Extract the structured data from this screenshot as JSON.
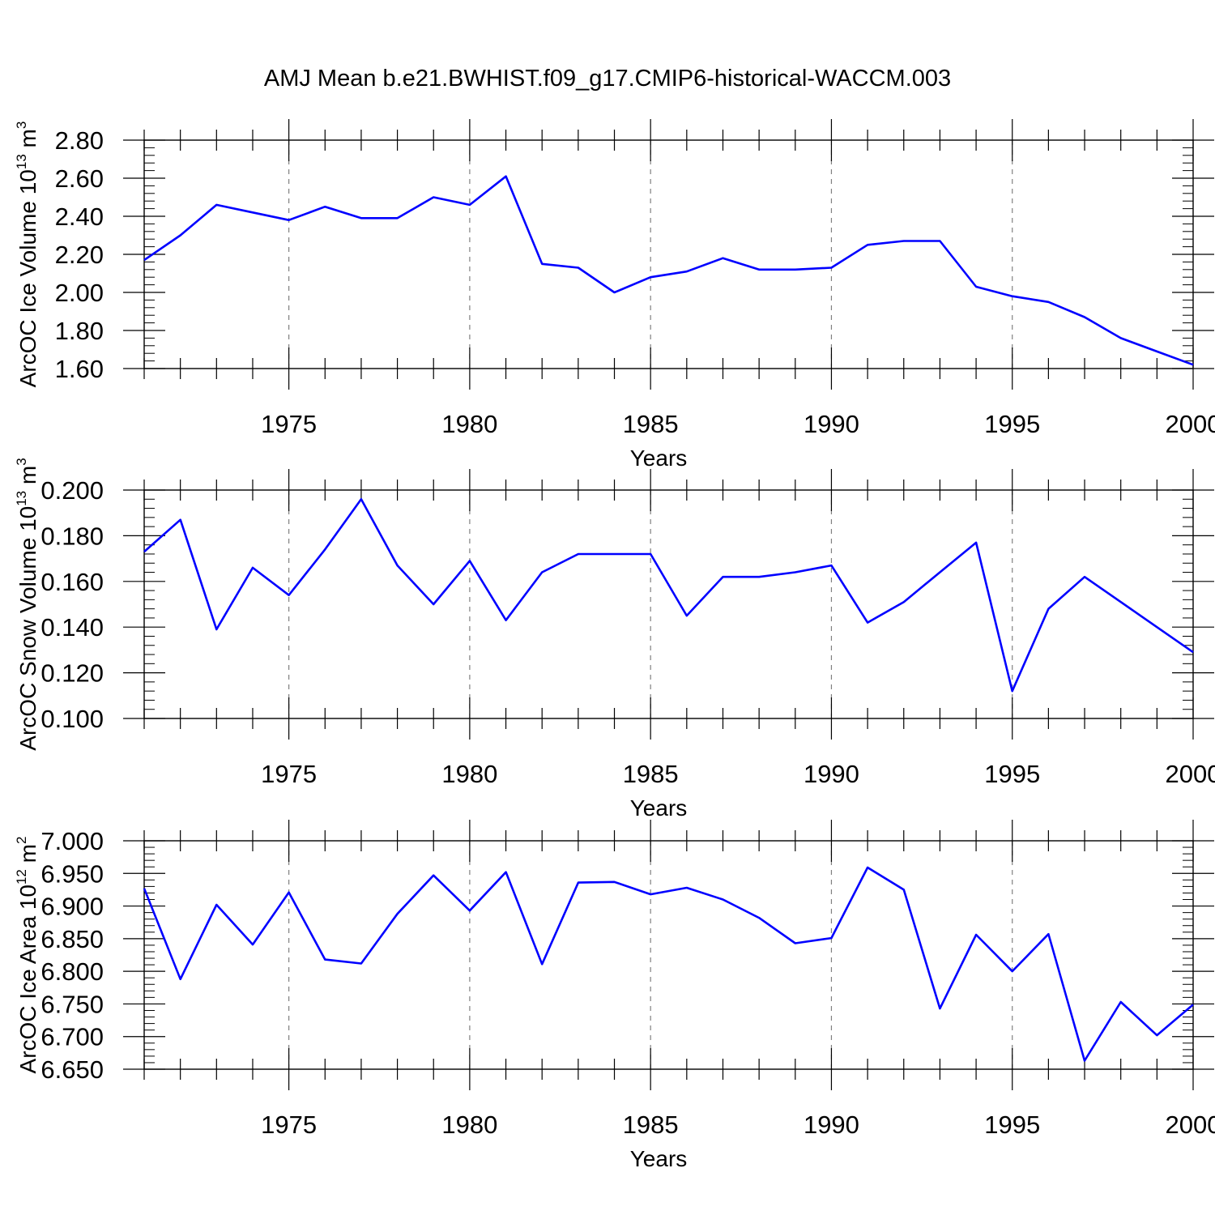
{
  "title": "AMJ Mean b.e21.BWHIST.f09_g17.CMIP6-historical-WACCM.003",
  "style": {
    "line_color": "#0000ff",
    "axis_color": "#000000",
    "grid_color": "#808080"
  },
  "chart_data": [
    {
      "type": "line",
      "ylabel_main": "ArcOC Ice Volume 10",
      "ylabel_exp": "13",
      "ylabel_unit": " m",
      "ylabel_unit_exp": "3",
      "xlabel": "Years",
      "xlim": [
        1971,
        2000
      ],
      "ylim": [
        1.6,
        2.8
      ],
      "yticks": [
        1.6,
        1.8,
        2.0,
        2.2,
        2.4,
        2.6,
        2.8
      ],
      "ytick_labels": [
        "1.60",
        "1.80",
        "2.00",
        "2.20",
        "2.40",
        "2.60",
        "2.80"
      ],
      "xticks": [
        1975,
        1980,
        1985,
        1990,
        1995,
        2000
      ],
      "xtick_labels": [
        "1975",
        "1980",
        "1985",
        "1990",
        "1995",
        "2000"
      ],
      "x": [
        1971,
        1972,
        1973,
        1974,
        1975,
        1976,
        1977,
        1978,
        1979,
        1980,
        1981,
        1982,
        1983,
        1984,
        1985,
        1986,
        1987,
        1988,
        1989,
        1990,
        1991,
        1992,
        1993,
        1994,
        1995,
        1996,
        1997,
        1998,
        1999,
        2000
      ],
      "values": [
        2.17,
        2.3,
        2.46,
        2.42,
        2.38,
        2.45,
        2.39,
        2.39,
        2.5,
        2.46,
        2.61,
        2.15,
        2.13,
        2.0,
        2.08,
        2.11,
        2.18,
        2.12,
        2.12,
        2.13,
        2.25,
        2.27,
        2.27,
        2.03,
        1.98,
        1.95,
        1.87,
        1.76,
        1.69,
        1.62
      ]
    },
    {
      "type": "line",
      "ylabel_main": "ArcOC Snow Volume 10",
      "ylabel_exp": "13",
      "ylabel_unit": " m",
      "ylabel_unit_exp": "3",
      "xlabel": "Years",
      "xlim": [
        1971,
        2000
      ],
      "ylim": [
        0.1,
        0.2
      ],
      "yticks": [
        0.1,
        0.12,
        0.14,
        0.16,
        0.18,
        0.2
      ],
      "ytick_labels": [
        "0.100",
        "0.120",
        "0.140",
        "0.160",
        "0.180",
        "0.200"
      ],
      "xticks": [
        1975,
        1980,
        1985,
        1990,
        1995,
        2000
      ],
      "xtick_labels": [
        "1975",
        "1980",
        "1985",
        "1990",
        "1995",
        "2000"
      ],
      "x": [
        1971,
        1972,
        1973,
        1974,
        1975,
        1976,
        1977,
        1978,
        1979,
        1980,
        1981,
        1982,
        1983,
        1984,
        1985,
        1986,
        1987,
        1988,
        1989,
        1990,
        1991,
        1992,
        1993,
        1994,
        1995,
        1996,
        1997,
        1998,
        1999,
        2000
      ],
      "values": [
        0.173,
        0.187,
        0.139,
        0.166,
        0.154,
        0.174,
        0.196,
        0.167,
        0.15,
        0.169,
        0.143,
        0.164,
        0.172,
        0.172,
        0.172,
        0.145,
        0.162,
        0.162,
        0.164,
        0.167,
        0.142,
        0.151,
        0.164,
        0.177,
        0.112,
        0.148,
        0.162,
        0.151,
        0.14,
        0.129
      ]
    },
    {
      "type": "line",
      "ylabel_main": "ArcOC Ice Area 10",
      "ylabel_exp": "12",
      "ylabel_unit": " m",
      "ylabel_unit_exp": "2",
      "xlabel": "Years",
      "xlim": [
        1971,
        2000
      ],
      "ylim": [
        6.65,
        7.0
      ],
      "yticks": [
        6.65,
        6.7,
        6.75,
        6.8,
        6.85,
        6.9,
        6.95,
        7.0
      ],
      "ytick_labels": [
        "6.650",
        "6.700",
        "6.750",
        "6.800",
        "6.850",
        "6.900",
        "6.950",
        "7.000"
      ],
      "xticks": [
        1975,
        1980,
        1985,
        1990,
        1995,
        2000
      ],
      "xtick_labels": [
        "1975",
        "1980",
        "1985",
        "1990",
        "1995",
        "2000"
      ],
      "x": [
        1971,
        1972,
        1973,
        1974,
        1975,
        1976,
        1977,
        1978,
        1979,
        1980,
        1981,
        1982,
        1983,
        1984,
        1985,
        1986,
        1987,
        1988,
        1989,
        1990,
        1991,
        1992,
        1993,
        1994,
        1995,
        1996,
        1997,
        1998,
        1999,
        2000
      ],
      "values": [
        6.927,
        6.788,
        6.902,
        6.841,
        6.921,
        6.818,
        6.812,
        6.888,
        6.947,
        6.893,
        6.952,
        6.811,
        6.936,
        6.937,
        6.918,
        6.928,
        6.91,
        6.882,
        6.843,
        6.851,
        6.959,
        6.925,
        6.743,
        6.856,
        6.8,
        6.857,
        6.663,
        6.753,
        6.702,
        6.749
      ]
    }
  ]
}
